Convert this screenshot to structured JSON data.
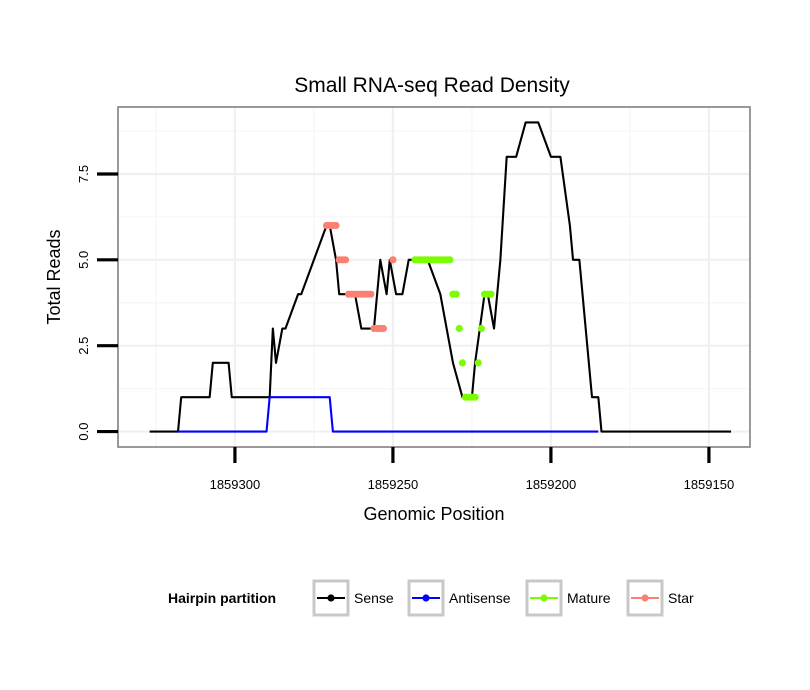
{
  "chart_data": {
    "type": "line",
    "title": "Small RNA-seq Read Density",
    "xlabel": "Genomic Position",
    "ylabel": "Total Reads",
    "x_reversed": true,
    "xlim": [
      1859337,
      1859137
    ],
    "ylim": [
      -0.45,
      9.45
    ],
    "x_ticks": [
      1859300,
      1859250,
      1859200,
      1859150
    ],
    "x_tick_labels": [
      "1859300",
      "1859250",
      "1859200",
      "1859150"
    ],
    "y_ticks": [
      0,
      2.5,
      5,
      7.5
    ],
    "y_tick_labels": [
      "0.0",
      "2.5",
      "5.0",
      "7.5"
    ],
    "grid": true,
    "legend": {
      "title": "Hairpin partition",
      "position": "bottom",
      "entries": [
        {
          "label": "Sense",
          "color": "#000000"
        },
        {
          "label": "Antisense",
          "color": "#0000ff"
        },
        {
          "label": "Mature",
          "color": "#7cfc00"
        },
        {
          "label": "Star",
          "color": "#fa8072"
        }
      ]
    },
    "series": [
      {
        "name": "Sense",
        "color": "#000000",
        "x": [
          1859327,
          1859318,
          1859317,
          1859308,
          1859307,
          1859302,
          1859301,
          1859292,
          1859291,
          1859289,
          1859288,
          1859287,
          1859285,
          1859284,
          1859280,
          1859279,
          1859271,
          1859270,
          1859268,
          1859267,
          1859265,
          1859264,
          1859262,
          1859260,
          1859256,
          1859255,
          1859254,
          1859252,
          1859251,
          1859249,
          1859247,
          1859245,
          1859243,
          1859241,
          1859239,
          1859235,
          1859231,
          1859228,
          1859225,
          1859224,
          1859221,
          1859220,
          1859218,
          1859216,
          1859214,
          1859212,
          1859211,
          1859208,
          1859204,
          1859200,
          1859197,
          1859194,
          1859193,
          1859191,
          1859188,
          1859187,
          1859185,
          1859184,
          1859183,
          1859182,
          1859181,
          1859179,
          1859178,
          1859177,
          1859176,
          1859175,
          1859171,
          1859170,
          1859168,
          1859167,
          1859166,
          1859165,
          1859164,
          1859163,
          1859162,
          1859155,
          1859150,
          1859145,
          1859143
        ],
        "values": [
          0,
          0,
          1,
          1,
          2,
          2,
          1,
          1,
          1,
          1,
          3,
          2,
          3,
          3,
          4,
          4,
          6,
          6,
          5,
          4,
          4,
          4,
          4,
          3,
          3,
          4,
          5,
          4,
          5,
          4,
          4,
          5,
          5,
          5,
          5,
          4,
          2,
          1,
          1,
          2,
          4,
          4,
          3,
          5,
          8,
          8,
          8,
          9,
          9,
          8,
          8,
          6,
          5,
          5,
          2,
          1,
          1,
          0,
          0,
          0,
          0,
          0,
          0,
          0,
          0,
          0,
          0,
          0,
          0,
          0,
          0,
          0,
          0,
          0,
          0,
          0,
          0,
          0,
          0
        ]
      },
      {
        "name": "Antisense",
        "color": "#0000ff",
        "x": [
          1859318,
          1859290,
          1859289,
          1859270,
          1859269,
          1859185
        ],
        "values": [
          0,
          0,
          1,
          1,
          0,
          0
        ]
      },
      {
        "name": "Mature",
        "color": "#7cfc00",
        "x": [
          1859243,
          1859242,
          1859241,
          1859240,
          1859239,
          1859238,
          1859237,
          1859236,
          1859235,
          1859234,
          1859233,
          1859232,
          1859231,
          1859230,
          1859229,
          1859228,
          1859227,
          1859226,
          1859225,
          1859224,
          1859223,
          1859222,
          1859221,
          1859220,
          1859219
        ],
        "values": [
          5,
          5,
          5,
          5,
          5,
          5,
          5,
          5,
          5,
          5,
          5,
          5,
          4,
          4,
          3,
          2,
          1,
          1,
          1,
          1,
          2,
          3,
          4,
          4,
          4
        ]
      },
      {
        "name": "Star",
        "color": "#fa8072",
        "x": [
          1859271,
          1859270,
          1859269,
          1859268,
          1859267,
          1859266,
          1859265,
          1859264,
          1859263,
          1859262,
          1859261,
          1859260,
          1859259,
          1859258,
          1859257,
          1859256,
          1859255,
          1859254,
          1859253,
          1859250
        ],
        "values": [
          6,
          6,
          6,
          6,
          5,
          5,
          5,
          4,
          4,
          4,
          4,
          4,
          4,
          4,
          4,
          3,
          3,
          3,
          3,
          5
        ]
      }
    ]
  }
}
